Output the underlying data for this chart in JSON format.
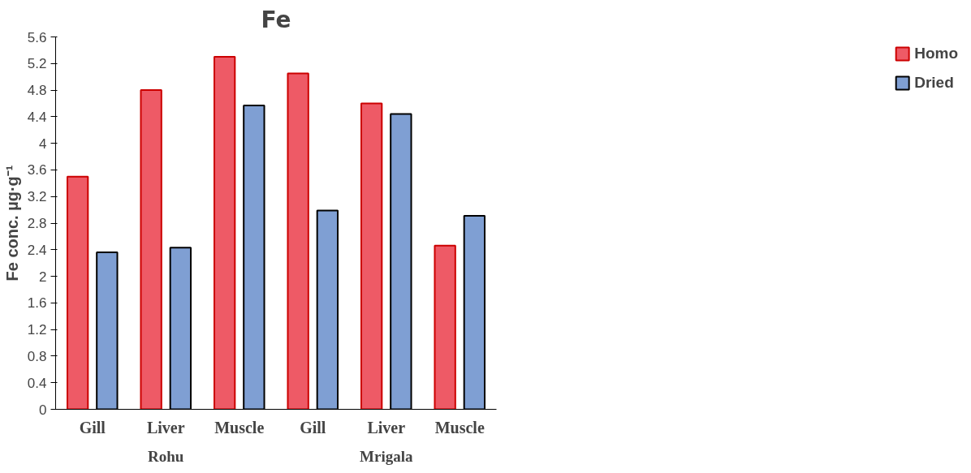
{
  "chart_data": {
    "type": "bar",
    "title": "Fe",
    "ylabel": "Fe conc. µg·g⁻¹",
    "categories": [
      "Gill",
      "Liver",
      "Muscle",
      "Gill",
      "Liver",
      "Muscle"
    ],
    "annotations": [
      "Rohu",
      "Mrigala"
    ],
    "series": [
      {
        "name": "Homo",
        "color": "#ee5a66",
        "values": [
          3.5,
          4.8,
          5.3,
          5.05,
          4.6,
          2.46
        ]
      },
      {
        "name": "Dried",
        "color": "#7f9fd3",
        "values": [
          2.36,
          2.43,
          4.57,
          2.99,
          4.44,
          2.91
        ]
      }
    ],
    "ylim": [
      0,
      5.6
    ],
    "yticks": [
      0,
      0.4,
      0.8,
      1.2,
      1.6,
      2,
      2.4,
      2.8,
      3.2,
      3.6,
      4,
      4.4,
      4.8,
      5.2,
      5.6
    ],
    "grid": false,
    "legend": "top right"
  }
}
